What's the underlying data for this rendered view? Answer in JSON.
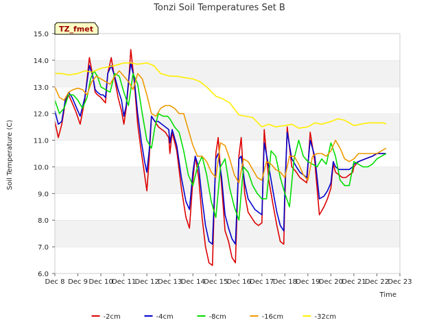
{
  "chart_data": {
    "type": "line",
    "title": "Tonzi Soil Temperatures Set B",
    "xlabel": "Time",
    "ylabel": "Soil Temperature (C)",
    "badge": "TZ_fmet",
    "xlim": [
      8,
      23
    ],
    "ylim": [
      6.0,
      15.0
    ],
    "x_ticks": [
      {
        "value": 8,
        "label": "Dec 8"
      },
      {
        "value": 9,
        "label": "Dec 9"
      },
      {
        "value": 10,
        "label": "Dec 10"
      },
      {
        "value": 11,
        "label": "Dec 11"
      },
      {
        "value": 12,
        "label": "Dec 12"
      },
      {
        "value": 13,
        "label": "Dec 13"
      },
      {
        "value": 14,
        "label": "Dec 14"
      },
      {
        "value": 15,
        "label": "Dec 15"
      },
      {
        "value": 16,
        "label": "Dec 16"
      },
      {
        "value": 17,
        "label": "Dec 17"
      },
      {
        "value": 18,
        "label": "Dec 18"
      },
      {
        "value": 19,
        "label": "Dec 19"
      },
      {
        "value": 20,
        "label": "Dec 20"
      },
      {
        "value": 21,
        "label": "Dec 21"
      },
      {
        "value": 22,
        "label": "Dec 22"
      },
      {
        "value": 23,
        "label": "Dec 23"
      }
    ],
    "y_ticks": [
      {
        "value": 6,
        "label": "6.0"
      },
      {
        "value": 7,
        "label": "7.0"
      },
      {
        "value": 8,
        "label": "8.0"
      },
      {
        "value": 9,
        "label": "9.0"
      },
      {
        "value": 10,
        "label": "10.0"
      },
      {
        "value": 11,
        "label": "11.0"
      },
      {
        "value": 12,
        "label": "12.0"
      },
      {
        "value": 13,
        "label": "13.0"
      },
      {
        "value": 14,
        "label": "14.0"
      },
      {
        "value": 15,
        "label": "15.0"
      }
    ],
    "grid": "horizontal bands",
    "legend_position": "bottom-center",
    "series": [
      {
        "name": "-2cm",
        "color": "#dd0000",
        "x": [
          8.0,
          8.15,
          8.3,
          8.45,
          8.6,
          8.75,
          8.9,
          9.1,
          9.3,
          9.5,
          9.65,
          9.75,
          9.85,
          10.0,
          10.1,
          10.2,
          10.3,
          10.45,
          10.6,
          10.75,
          10.9,
          11.0,
          11.1,
          11.2,
          11.3,
          11.45,
          11.6,
          11.75,
          11.9,
          12.0,
          12.1,
          12.2,
          12.35,
          12.5,
          12.65,
          12.8,
          12.95,
          13.0,
          13.1,
          13.3,
          13.5,
          13.7,
          13.85,
          14.0,
          14.1,
          14.25,
          14.4,
          14.55,
          14.7,
          14.85,
          15.0,
          15.1,
          15.25,
          15.4,
          15.55,
          15.7,
          15.85,
          16.0,
          16.1,
          16.25,
          16.4,
          16.55,
          16.7,
          16.85,
          17.0,
          17.1,
          17.3,
          17.5,
          17.65,
          17.8,
          17.95,
          18.0,
          18.1,
          18.3,
          18.5,
          18.65,
          18.8,
          18.95,
          19.0,
          19.1,
          19.3,
          19.5,
          19.7,
          19.85,
          20.0,
          20.1,
          20.2,
          20.35,
          20.5,
          20.65,
          20.8,
          20.95,
          21.0,
          21.2,
          21.5,
          21.8,
          22.0,
          22.2,
          22.4
        ],
        "values": [
          11.7,
          11.1,
          11.6,
          12.4,
          12.7,
          12.4,
          12.1,
          11.6,
          12.5,
          14.1,
          13.4,
          12.8,
          12.7,
          12.6,
          12.5,
          12.4,
          13.5,
          14.1,
          13.3,
          12.6,
          12.1,
          11.6,
          12.2,
          13.1,
          14.4,
          13.2,
          11.6,
          10.6,
          9.7,
          9.1,
          10.3,
          11.9,
          11.7,
          11.5,
          11.4,
          11.3,
          11.1,
          10.5,
          11.3,
          10.6,
          9.2,
          8.1,
          7.7,
          9.5,
          10.4,
          9.6,
          8.1,
          7.0,
          6.4,
          6.3,
          10.5,
          11.1,
          9.3,
          7.6,
          7.2,
          6.6,
          6.4,
          10.4,
          11.1,
          9.0,
          8.3,
          8.1,
          7.9,
          7.8,
          7.9,
          11.4,
          9.5,
          8.5,
          7.8,
          7.2,
          7.1,
          8.8,
          11.5,
          10.0,
          9.8,
          9.6,
          9.5,
          9.4,
          10.0,
          11.3,
          10.2,
          8.2,
          8.5,
          8.8,
          9.2,
          10.1,
          9.8,
          9.7,
          9.6,
          9.6,
          9.7,
          9.8,
          10.0,
          10.2,
          10.3,
          10.4,
          10.5,
          10.5,
          10.5
        ]
      },
      {
        "name": "-4cm",
        "color": "#0000cc",
        "x": [
          8.0,
          8.15,
          8.3,
          8.45,
          8.6,
          8.75,
          8.9,
          9.1,
          9.3,
          9.5,
          9.65,
          9.75,
          9.85,
          10.0,
          10.1,
          10.2,
          10.3,
          10.45,
          10.6,
          10.75,
          10.9,
          11.0,
          11.1,
          11.2,
          11.3,
          11.45,
          11.6,
          11.75,
          11.9,
          12.0,
          12.1,
          12.2,
          12.35,
          12.5,
          12.65,
          12.8,
          12.95,
          13.0,
          13.1,
          13.3,
          13.5,
          13.7,
          13.85,
          14.0,
          14.1,
          14.25,
          14.4,
          14.55,
          14.7,
          14.85,
          15.0,
          15.1,
          15.25,
          15.4,
          15.55,
          15.7,
          15.85,
          16.0,
          16.1,
          16.25,
          16.4,
          16.55,
          16.7,
          16.85,
          17.0,
          17.1,
          17.3,
          17.5,
          17.65,
          17.8,
          17.95,
          18.0,
          18.1,
          18.3,
          18.5,
          18.65,
          18.8,
          18.95,
          19.0,
          19.1,
          19.3,
          19.5,
          19.7,
          19.85,
          20.0,
          20.1,
          20.2,
          20.35,
          20.5,
          20.65,
          20.8,
          20.95,
          21.0,
          21.2,
          21.5,
          21.8,
          22.0,
          22.2,
          22.4
        ],
        "values": [
          12.1,
          11.6,
          11.7,
          12.5,
          12.8,
          12.6,
          12.3,
          11.9,
          12.6,
          13.8,
          13.4,
          12.9,
          12.8,
          12.7,
          12.7,
          12.6,
          13.5,
          13.8,
          13.4,
          12.9,
          12.5,
          11.9,
          12.3,
          13.2,
          13.9,
          13.3,
          12.0,
          11.0,
          10.2,
          9.8,
          10.6,
          11.9,
          11.7,
          11.7,
          11.6,
          11.5,
          11.4,
          10.9,
          11.4,
          10.8,
          9.6,
          8.7,
          8.4,
          9.8,
          10.4,
          10.0,
          8.8,
          7.8,
          7.2,
          7.1,
          10.3,
          10.5,
          9.6,
          8.2,
          7.7,
          7.3,
          7.1,
          10.3,
          10.4,
          9.4,
          8.8,
          8.6,
          8.4,
          8.3,
          8.2,
          10.9,
          10.0,
          9.0,
          8.3,
          7.8,
          7.6,
          9.2,
          11.3,
          10.3,
          10.0,
          9.8,
          9.7,
          9.6,
          10.1,
          11.0,
          10.4,
          8.8,
          8.9,
          9.1,
          9.4,
          10.2,
          10.0,
          9.9,
          9.9,
          9.9,
          9.9,
          10.0,
          10.1,
          10.2,
          10.3,
          10.4,
          10.5,
          10.5,
          10.5
        ]
      },
      {
        "name": "-8cm",
        "color": "#00dd00",
        "x": [
          8.0,
          8.2,
          8.4,
          8.6,
          8.8,
          9.0,
          9.2,
          9.4,
          9.55,
          9.7,
          9.85,
          10.0,
          10.2,
          10.4,
          10.6,
          10.8,
          11.0,
          11.2,
          11.4,
          11.6,
          11.8,
          12.0,
          12.2,
          12.35,
          12.5,
          12.7,
          12.9,
          13.0,
          13.2,
          13.4,
          13.6,
          13.8,
          14.0,
          14.2,
          14.4,
          14.6,
          14.8,
          15.0,
          15.2,
          15.4,
          15.6,
          15.8,
          16.0,
          16.2,
          16.4,
          16.6,
          16.8,
          17.0,
          17.2,
          17.4,
          17.6,
          17.8,
          18.0,
          18.2,
          18.4,
          18.6,
          18.8,
          19.0,
          19.2,
          19.4,
          19.6,
          19.8,
          20.0,
          20.2,
          20.4,
          20.6,
          20.8,
          21.0,
          21.2,
          21.4,
          21.6,
          21.8,
          22.0,
          22.2,
          22.4
        ],
        "values": [
          12.5,
          12.0,
          12.2,
          12.7,
          12.7,
          12.5,
          12.2,
          12.6,
          13.3,
          13.6,
          13.4,
          13.0,
          12.9,
          12.8,
          13.5,
          13.4,
          12.8,
          12.3,
          13.5,
          13.1,
          12.0,
          11.0,
          10.7,
          11.5,
          12.0,
          11.9,
          11.9,
          11.8,
          11.5,
          11.3,
          10.6,
          9.7,
          9.3,
          10.0,
          10.4,
          9.7,
          8.7,
          8.1,
          10.0,
          10.3,
          9.2,
          8.5,
          8.0,
          10.0,
          9.8,
          9.3,
          9.0,
          8.8,
          8.8,
          10.6,
          10.4,
          9.6,
          9.0,
          8.5,
          10.3,
          11.0,
          10.4,
          10.2,
          10.1,
          10.0,
          10.3,
          10.1,
          10.9,
          10.4,
          9.5,
          9.3,
          9.3,
          10.2,
          10.1,
          10.0,
          10.0,
          10.1,
          10.3,
          10.4,
          10.5
        ]
      },
      {
        "name": "-16cm",
        "color": "#ee9900",
        "x": [
          8.0,
          8.2,
          8.4,
          8.6,
          8.8,
          9.0,
          9.2,
          9.4,
          9.6,
          9.8,
          10.0,
          10.2,
          10.4,
          10.6,
          10.8,
          11.0,
          11.2,
          11.4,
          11.6,
          11.8,
          12.0,
          12.2,
          12.4,
          12.6,
          12.8,
          13.0,
          13.2,
          13.4,
          13.6,
          13.8,
          14.0,
          14.2,
          14.4,
          14.6,
          14.8,
          15.0,
          15.2,
          15.4,
          15.6,
          15.8,
          16.0,
          16.2,
          16.4,
          16.6,
          16.8,
          17.0,
          17.2,
          17.4,
          17.6,
          17.8,
          18.0,
          18.2,
          18.4,
          18.6,
          18.8,
          19.0,
          19.2,
          19.4,
          19.6,
          19.8,
          20.0,
          20.2,
          20.4,
          20.6,
          20.8,
          21.0,
          21.2,
          21.4,
          21.6,
          21.8,
          22.0,
          22.2,
          22.4
        ],
        "values": [
          13.0,
          12.6,
          12.5,
          12.8,
          12.9,
          12.95,
          12.9,
          12.7,
          13.2,
          13.4,
          13.3,
          13.2,
          13.1,
          13.4,
          13.6,
          13.4,
          13.2,
          12.9,
          13.5,
          13.3,
          12.7,
          12.0,
          11.9,
          12.2,
          12.3,
          12.3,
          12.2,
          12.0,
          12.0,
          11.4,
          10.8,
          10.4,
          10.4,
          10.2,
          9.8,
          9.6,
          10.9,
          10.8,
          10.3,
          9.7,
          9.4,
          10.3,
          10.2,
          9.9,
          9.6,
          9.5,
          10.2,
          10.1,
          9.9,
          9.8,
          9.6,
          10.4,
          10.4,
          10.1,
          9.7,
          9.5,
          10.4,
          10.5,
          10.5,
          10.4,
          10.6,
          11.0,
          10.7,
          10.3,
          10.2,
          10.3,
          10.5,
          10.5,
          10.5,
          10.5,
          10.5,
          10.6,
          10.7
        ]
      },
      {
        "name": "-32cm",
        "color": "#ffee00",
        "x": [
          8.0,
          8.3,
          8.6,
          9.0,
          9.3,
          9.6,
          10.0,
          10.3,
          10.6,
          11.0,
          11.3,
          11.6,
          12.0,
          12.3,
          12.6,
          13.0,
          13.3,
          13.6,
          14.0,
          14.3,
          14.6,
          15.0,
          15.3,
          15.6,
          16.0,
          16.3,
          16.6,
          17.0,
          17.3,
          17.6,
          18.0,
          18.3,
          18.6,
          19.0,
          19.3,
          19.6,
          20.0,
          20.3,
          20.6,
          21.0,
          21.3,
          21.6,
          22.0,
          22.3,
          22.4
        ],
        "values": [
          13.5,
          13.5,
          13.45,
          13.5,
          13.6,
          13.55,
          13.7,
          13.75,
          13.8,
          13.9,
          13.9,
          13.85,
          13.9,
          13.8,
          13.5,
          13.4,
          13.4,
          13.35,
          13.3,
          13.2,
          13.0,
          12.65,
          12.55,
          12.4,
          11.95,
          11.9,
          11.85,
          11.5,
          11.6,
          11.5,
          11.55,
          11.6,
          11.45,
          11.5,
          11.65,
          11.6,
          11.7,
          11.8,
          11.75,
          11.55,
          11.6,
          11.65,
          11.65,
          11.65,
          11.6
        ]
      }
    ]
  }
}
